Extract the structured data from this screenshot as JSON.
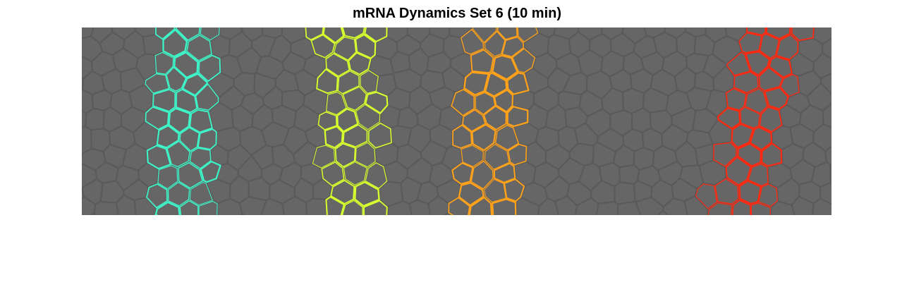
{
  "title": "mRNA Dynamics Set 6 (10 min)",
  "image": {
    "background_color": "#666666",
    "tissue_edge_color": "#5a5a5a",
    "stripes": [
      {
        "name": "stripe-1",
        "color": "#3ef5c8"
      },
      {
        "name": "stripe-2",
        "color": "#d7ff2e"
      },
      {
        "name": "stripe-3",
        "color": "#ffa21a"
      },
      {
        "name": "stripe-4",
        "color": "#ff2a12"
      }
    ]
  }
}
